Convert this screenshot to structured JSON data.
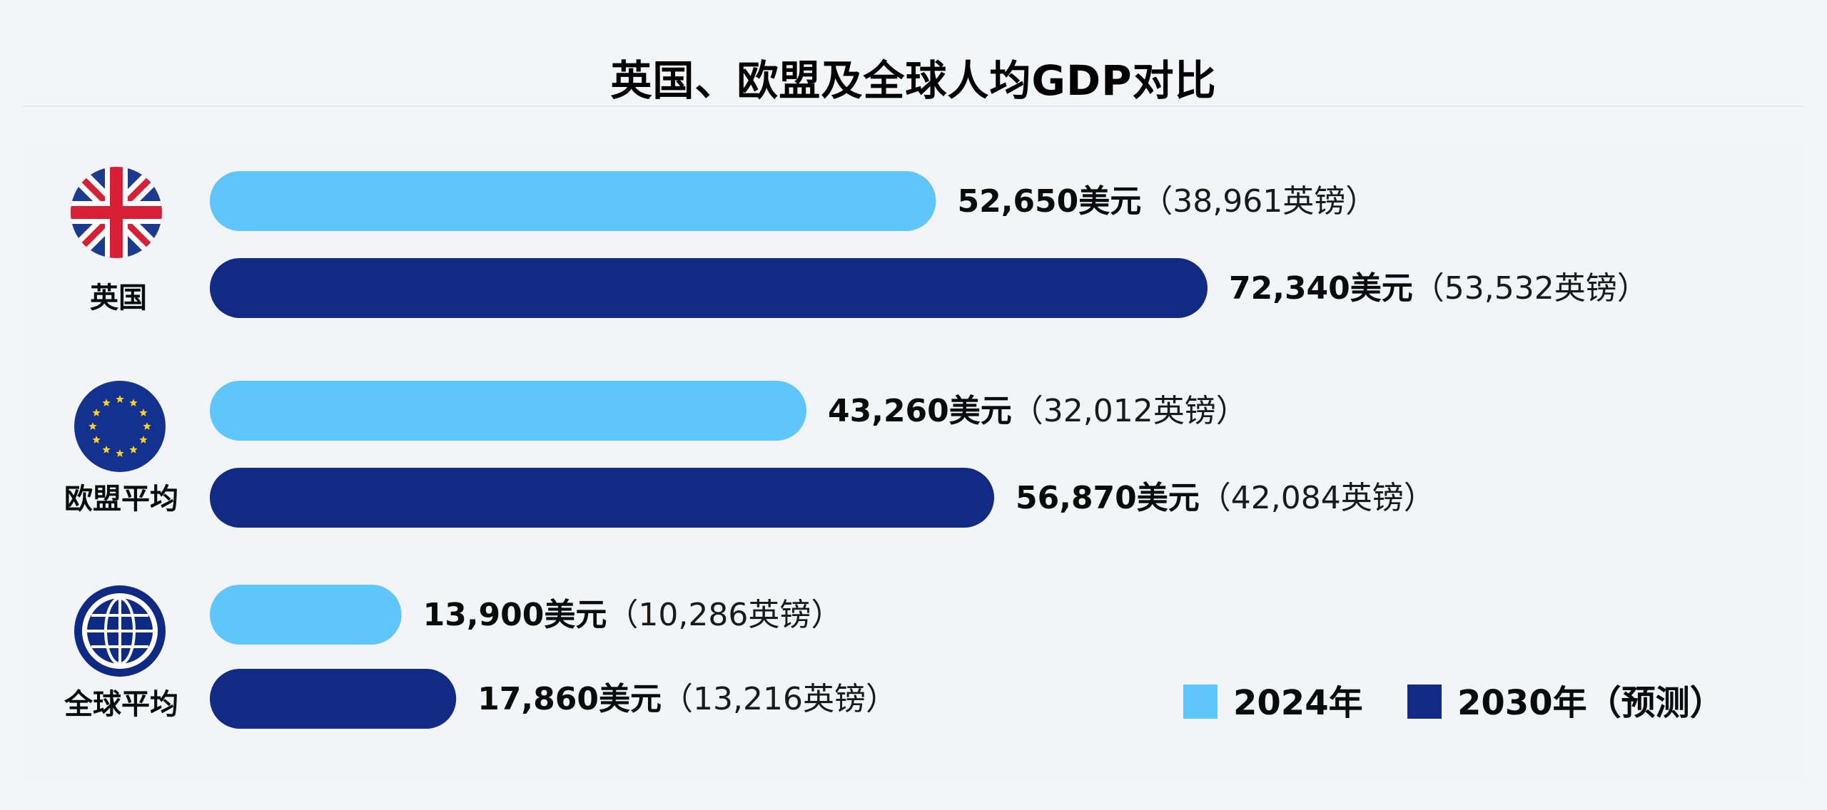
{
  "chart_data": {
    "type": "bar",
    "orientation": "horizontal",
    "title": "英国、欧盟及全球人均GDP对比",
    "categories": [
      "英国",
      "欧盟平均",
      "全球平均"
    ],
    "series": [
      {
        "name": "2024年",
        "color": "#5ec6fb",
        "values": [
          52650,
          43260,
          13900
        ],
        "labels_main": [
          "52,650美元",
          "43,260美元",
          "13,900美元"
        ],
        "labels_sub": [
          "（38,961英镑）",
          "（32,012英镑）",
          "（10,286英镑）"
        ]
      },
      {
        "name": "2030年（预测）",
        "color": "#112a83",
        "values": [
          72340,
          56870,
          17860
        ],
        "labels_main": [
          "72,340美元",
          "56,870美元",
          "17,860美元"
        ],
        "labels_sub": [
          "（53,532英镑）",
          "（42,084英镑）",
          "（13,216英镑）"
        ]
      }
    ],
    "xlim": [
      0,
      80000
    ],
    "grid": false,
    "legend": "bottom-right",
    "icons": [
      "uk-flag-icon",
      "eu-flag-icon",
      "globe-icon"
    ]
  }
}
